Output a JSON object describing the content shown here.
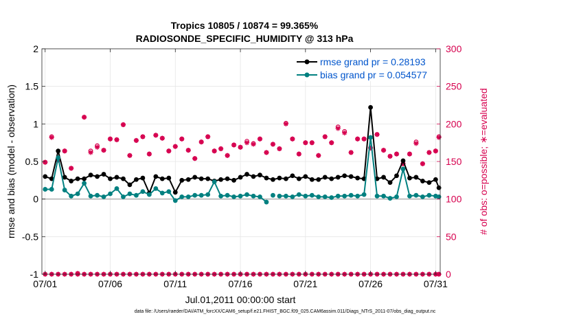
{
  "chart_data": {
    "type": "line",
    "title": "Tropics 10805 / 10874 = 99.365%",
    "subtitle": "RADIOSONDE_SPECIFIC_HUMIDITY @ 313 hPa",
    "xlabel": "Jul.01,2011 00:00:00 start",
    "ylabel": "rmse and bias (model - observation)",
    "y2label": "# of obs: o=possible; ∗=evaluated",
    "footnote": "data file: /Users/raeder/DAI/ATM_forcXX/CAM6_setup/f.e21.FHIST_BGC.f09_025.CAM6assim.011/Diags_NTrS_2011-07/obs_diag_output.nc",
    "xlim": [
      0.75,
      31.35
    ],
    "ylim": [
      -1,
      2
    ],
    "y2lim": [
      0,
      300
    ],
    "grid": true,
    "legend_position": "top-right",
    "xticks": [
      {
        "value": 1,
        "label": "07/01"
      },
      {
        "value": 6,
        "label": "07/06"
      },
      {
        "value": 11,
        "label": "07/11"
      },
      {
        "value": 16,
        "label": "07/16"
      },
      {
        "value": 21,
        "label": "07/21"
      },
      {
        "value": 26,
        "label": "07/26"
      },
      {
        "value": 31,
        "label": "07/31"
      }
    ],
    "yticks": [
      {
        "value": 2,
        "label": "2"
      },
      {
        "value": 1.5,
        "label": "1.5"
      },
      {
        "value": 1,
        "label": "1"
      },
      {
        "value": 0.5,
        "label": "0.5"
      },
      {
        "value": 0,
        "label": "0"
      },
      {
        "value": -0.5,
        "label": "-0.5"
      },
      {
        "value": -1,
        "label": "-1"
      }
    ],
    "y2ticks": [
      {
        "value": 300,
        "label": "300"
      },
      {
        "value": 250,
        "label": "250"
      },
      {
        "value": 200,
        "label": "200"
      },
      {
        "value": 150,
        "label": "150"
      },
      {
        "value": 100,
        "label": "100"
      },
      {
        "value": 50,
        "label": "50"
      },
      {
        "value": 0,
        "label": "0"
      }
    ],
    "x": [
      1.0,
      1.5,
      2.0,
      2.5,
      3.0,
      3.5,
      4.0,
      4.5,
      5.0,
      5.5,
      6.0,
      6.5,
      7.0,
      7.5,
      8.0,
      8.5,
      9.0,
      9.5,
      10.0,
      10.5,
      11.0,
      11.5,
      12.0,
      12.5,
      13.0,
      13.5,
      14.0,
      14.5,
      15.0,
      15.5,
      16.0,
      16.5,
      17.0,
      17.5,
      18.0,
      18.5,
      19.0,
      19.5,
      20.0,
      20.5,
      21.0,
      21.5,
      22.0,
      22.5,
      23.0,
      23.5,
      24.0,
      24.5,
      25.0,
      25.5,
      26.0,
      26.5,
      27.0,
      27.5,
      28.0,
      28.5,
      29.0,
      29.5,
      30.0,
      30.5,
      31.0,
      31.25
    ],
    "series": [
      {
        "name": "rmse grand pr = 0.28193",
        "color": "#000000",
        "axis": "left",
        "values": [
          0.3,
          0.27,
          0.64,
          0.29,
          0.24,
          0.27,
          0.27,
          0.32,
          0.3,
          0.33,
          0.27,
          0.29,
          0.27,
          0.19,
          0.26,
          0.28,
          0.08,
          0.3,
          0.27,
          0.28,
          0.09,
          0.25,
          0.26,
          0.29,
          0.27,
          0.27,
          0.24,
          0.26,
          0.27,
          0.25,
          0.29,
          0.33,
          0.3,
          0.32,
          0.28,
          0.26,
          0.28,
          0.27,
          0.31,
          0.27,
          0.3,
          0.26,
          0.26,
          0.29,
          0.27,
          0.29,
          0.31,
          0.3,
          0.28,
          0.27,
          1.22,
          0.27,
          0.29,
          0.22,
          0.31,
          0.51,
          0.28,
          0.29,
          0.24,
          0.22,
          0.26,
          0.15
        ],
        "gaps_after": [],
        "isolated": []
      },
      {
        "name": "bias grand pr = 0.054577",
        "color": "#008080",
        "axis": "left",
        "values": [
          0.13,
          0.13,
          0.55,
          0.12,
          0.04,
          0.07,
          0.21,
          0.04,
          0.05,
          0.03,
          0.07,
          0.14,
          0.03,
          0.07,
          0.05,
          0.1,
          0.06,
          0.14,
          0.08,
          0.1,
          -0.02,
          0.03,
          0.03,
          0.05,
          0.05,
          0.06,
          0.23,
          0.04,
          0.05,
          0.03,
          0.04,
          0.06,
          0.04,
          0.03,
          -0.04,
          0.05,
          0.04,
          0.04,
          0.03,
          0.06,
          0.04,
          0.05,
          0.03,
          0.03,
          0.02,
          0.04,
          0.04,
          0.05,
          0.04,
          0.06,
          0.82,
          0.04,
          0.04,
          0.01,
          0.03,
          0.4,
          0.04,
          0.05,
          0.03,
          0.05,
          0.04,
          0.03
        ],
        "gaps_after": [],
        "isolated": [
          35
        ]
      },
      {
        "name": "# of obs possible",
        "color": "#d6004e",
        "axis": "right",
        "marker": "circle-open",
        "possible": [
          149,
          183,
          152,
          164,
          141,
          1,
          209,
          164,
          171,
          165,
          180,
          179,
          199,
          158,
          178,
          183,
          160,
          185,
          181,
          164,
          170,
          180,
          165,
          154,
          176,
          183,
          164,
          167,
          158,
          172,
          169,
          177,
          174,
          180,
          162,
          173,
          167,
          201,
          180,
          160,
          175,
          175,
          158,
          183,
          175,
          196,
          190,
          162,
          180,
          180,
          168,
          186,
          165,
          157,
          160,
          147,
          160,
          176,
          147,
          162,
          164,
          183
        ],
        "evaluated": [
          149,
          182,
          152,
          164,
          141,
          1,
          209,
          162,
          169,
          165,
          180,
          179,
          199,
          158,
          178,
          183,
          160,
          185,
          181,
          164,
          170,
          180,
          165,
          154,
          176,
          183,
          164,
          167,
          158,
          172,
          169,
          175,
          173,
          180,
          162,
          173,
          167,
          200,
          180,
          160,
          175,
          175,
          158,
          183,
          175,
          194,
          188,
          162,
          180,
          180,
          168,
          186,
          165,
          157,
          160,
          147,
          160,
          174,
          147,
          162,
          164,
          182
        ]
      }
    ]
  }
}
